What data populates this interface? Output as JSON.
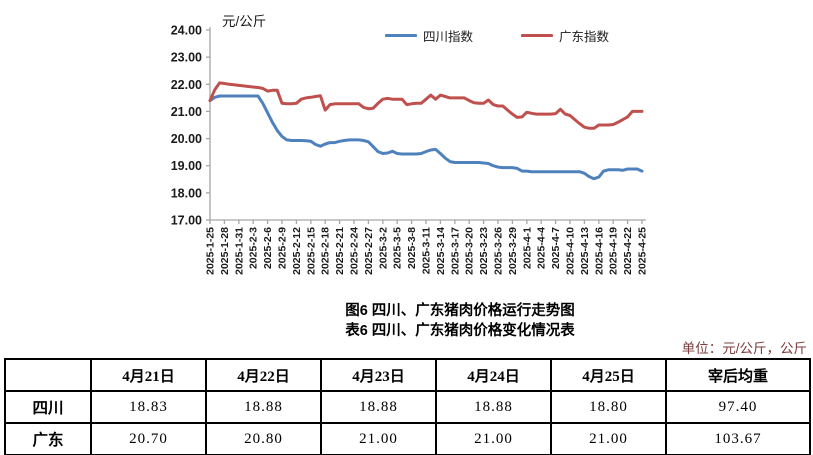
{
  "chart": {
    "unit_label": "元/公斤",
    "legend": [
      {
        "label": "四川指数",
        "color": "#4F81BD"
      },
      {
        "label": "广东指数",
        "color": "#C0504D"
      }
    ],
    "axis_color": "#a6a6a6",
    "tick_text_color": "#1a1a1a"
  },
  "chart_data": {
    "type": "line",
    "ylabel": "元/公斤",
    "ylim": [
      17.0,
      24.0
    ],
    "ytick_step": 1.0,
    "ytick_format_decimals": 2,
    "grid": false,
    "legend_position": "top",
    "x_tick_every": 3,
    "x": [
      "2025-1-25",
      "2025-1-26",
      "2025-1-27",
      "2025-1-28",
      "2025-1-29",
      "2025-1-30",
      "2025-1-31",
      "2025-2-1",
      "2025-2-2",
      "2025-2-3",
      "2025-2-4",
      "2025-2-5",
      "2025-2-6",
      "2025-2-7",
      "2025-2-8",
      "2025-2-9",
      "2025-2-10",
      "2025-2-11",
      "2025-2-12",
      "2025-2-13",
      "2025-2-14",
      "2025-2-15",
      "2025-2-16",
      "2025-2-17",
      "2025-2-18",
      "2025-2-19",
      "2025-2-20",
      "2025-2-21",
      "2025-2-22",
      "2025-2-23",
      "2025-2-24",
      "2025-2-25",
      "2025-2-26",
      "2025-2-27",
      "2025-2-28",
      "2025-3-1",
      "2025-3-2",
      "2025-3-3",
      "2025-3-4",
      "2025-3-5",
      "2025-3-6",
      "2025-3-7",
      "2025-3-8",
      "2025-3-9",
      "2025-3-10",
      "2025-3-11",
      "2025-3-12",
      "2025-3-13",
      "2025-3-14",
      "2025-3-15",
      "2025-3-16",
      "2025-3-17",
      "2025-3-18",
      "2025-3-19",
      "2025-3-20",
      "2025-3-21",
      "2025-3-22",
      "2025-3-23",
      "2025-3-24",
      "2025-3-25",
      "2025-3-26",
      "2025-3-27",
      "2025-3-28",
      "2025-3-29",
      "2025-3-30",
      "2025-3-31",
      "2025-4-1",
      "2025-4-2",
      "2025-4-3",
      "2025-4-4",
      "2025-4-5",
      "2025-4-6",
      "2025-4-7",
      "2025-4-8",
      "2025-4-9",
      "2025-4-10",
      "2025-4-11",
      "2025-4-12",
      "2025-4-13",
      "2025-4-14",
      "2025-4-15",
      "2025-4-16",
      "2025-4-17",
      "2025-4-18",
      "2025-4-19",
      "2025-4-20",
      "2025-4-21",
      "2025-4-22",
      "2025-4-23",
      "2025-4-24",
      "2025-4-25"
    ],
    "series": [
      {
        "name": "四川指数",
        "color": "#4F81BD",
        "values": [
          21.4,
          21.52,
          21.57,
          21.57,
          21.57,
          21.57,
          21.57,
          21.57,
          21.57,
          21.57,
          21.57,
          21.3,
          20.95,
          20.6,
          20.3,
          20.08,
          19.95,
          19.93,
          19.93,
          19.93,
          19.92,
          19.9,
          19.78,
          19.72,
          19.8,
          19.85,
          19.85,
          19.9,
          19.93,
          19.95,
          19.95,
          19.95,
          19.93,
          19.88,
          19.7,
          19.52,
          19.45,
          19.47,
          19.53,
          19.45,
          19.43,
          19.43,
          19.43,
          19.43,
          19.45,
          19.52,
          19.58,
          19.6,
          19.45,
          19.28,
          19.15,
          19.12,
          19.12,
          19.12,
          19.12,
          19.12,
          19.12,
          19.1,
          19.08,
          19.0,
          18.95,
          18.93,
          18.93,
          18.93,
          18.9,
          18.8,
          18.8,
          18.78,
          18.78,
          18.78,
          18.78,
          18.78,
          18.78,
          18.78,
          18.78,
          18.78,
          18.78,
          18.78,
          18.72,
          18.6,
          18.52,
          18.58,
          18.8,
          18.85,
          18.85,
          18.85,
          18.83,
          18.88,
          18.88,
          18.88,
          18.8
        ]
      },
      {
        "name": "广东指数",
        "color": "#C0504D",
        "values": [
          21.4,
          21.8,
          22.05,
          22.03,
          22.0,
          21.98,
          21.96,
          21.94,
          21.92,
          21.9,
          21.88,
          21.85,
          21.75,
          21.78,
          21.78,
          21.3,
          21.28,
          21.28,
          21.3,
          21.45,
          21.5,
          21.52,
          21.55,
          21.58,
          21.05,
          21.25,
          21.28,
          21.28,
          21.28,
          21.28,
          21.28,
          21.28,
          21.15,
          21.1,
          21.12,
          21.3,
          21.45,
          21.48,
          21.45,
          21.45,
          21.45,
          21.25,
          21.28,
          21.3,
          21.3,
          21.45,
          21.6,
          21.45,
          21.6,
          21.55,
          21.5,
          21.5,
          21.5,
          21.5,
          21.4,
          21.32,
          21.3,
          21.3,
          21.42,
          21.25,
          21.2,
          21.2,
          21.05,
          20.9,
          20.78,
          20.8,
          20.97,
          20.93,
          20.9,
          20.9,
          20.9,
          20.9,
          20.92,
          21.08,
          20.9,
          20.85,
          20.7,
          20.55,
          20.42,
          20.38,
          20.38,
          20.5,
          20.5,
          20.5,
          20.52,
          20.6,
          20.7,
          20.8,
          21.0,
          21.0,
          21.0
        ]
      }
    ]
  },
  "titles": {
    "figure": "图6 四川、广东猪肉价格运行走势图",
    "table": "表6 四川、广东猪肉价格变化情况表",
    "unit_note": "单位：元/公斤，公斤"
  },
  "table": {
    "columns": [
      "",
      "4月21日",
      "4月22日",
      "4月23日",
      "4月24日",
      "4月25日",
      "宰后均重"
    ],
    "rows": [
      {
        "label": "四川",
        "values": [
          "18.83",
          "18.88",
          "18.88",
          "18.88",
          "18.80",
          "97.40"
        ]
      },
      {
        "label": "广东",
        "values": [
          "20.70",
          "20.80",
          "21.00",
          "21.00",
          "21.00",
          "103.67"
        ]
      }
    ]
  }
}
